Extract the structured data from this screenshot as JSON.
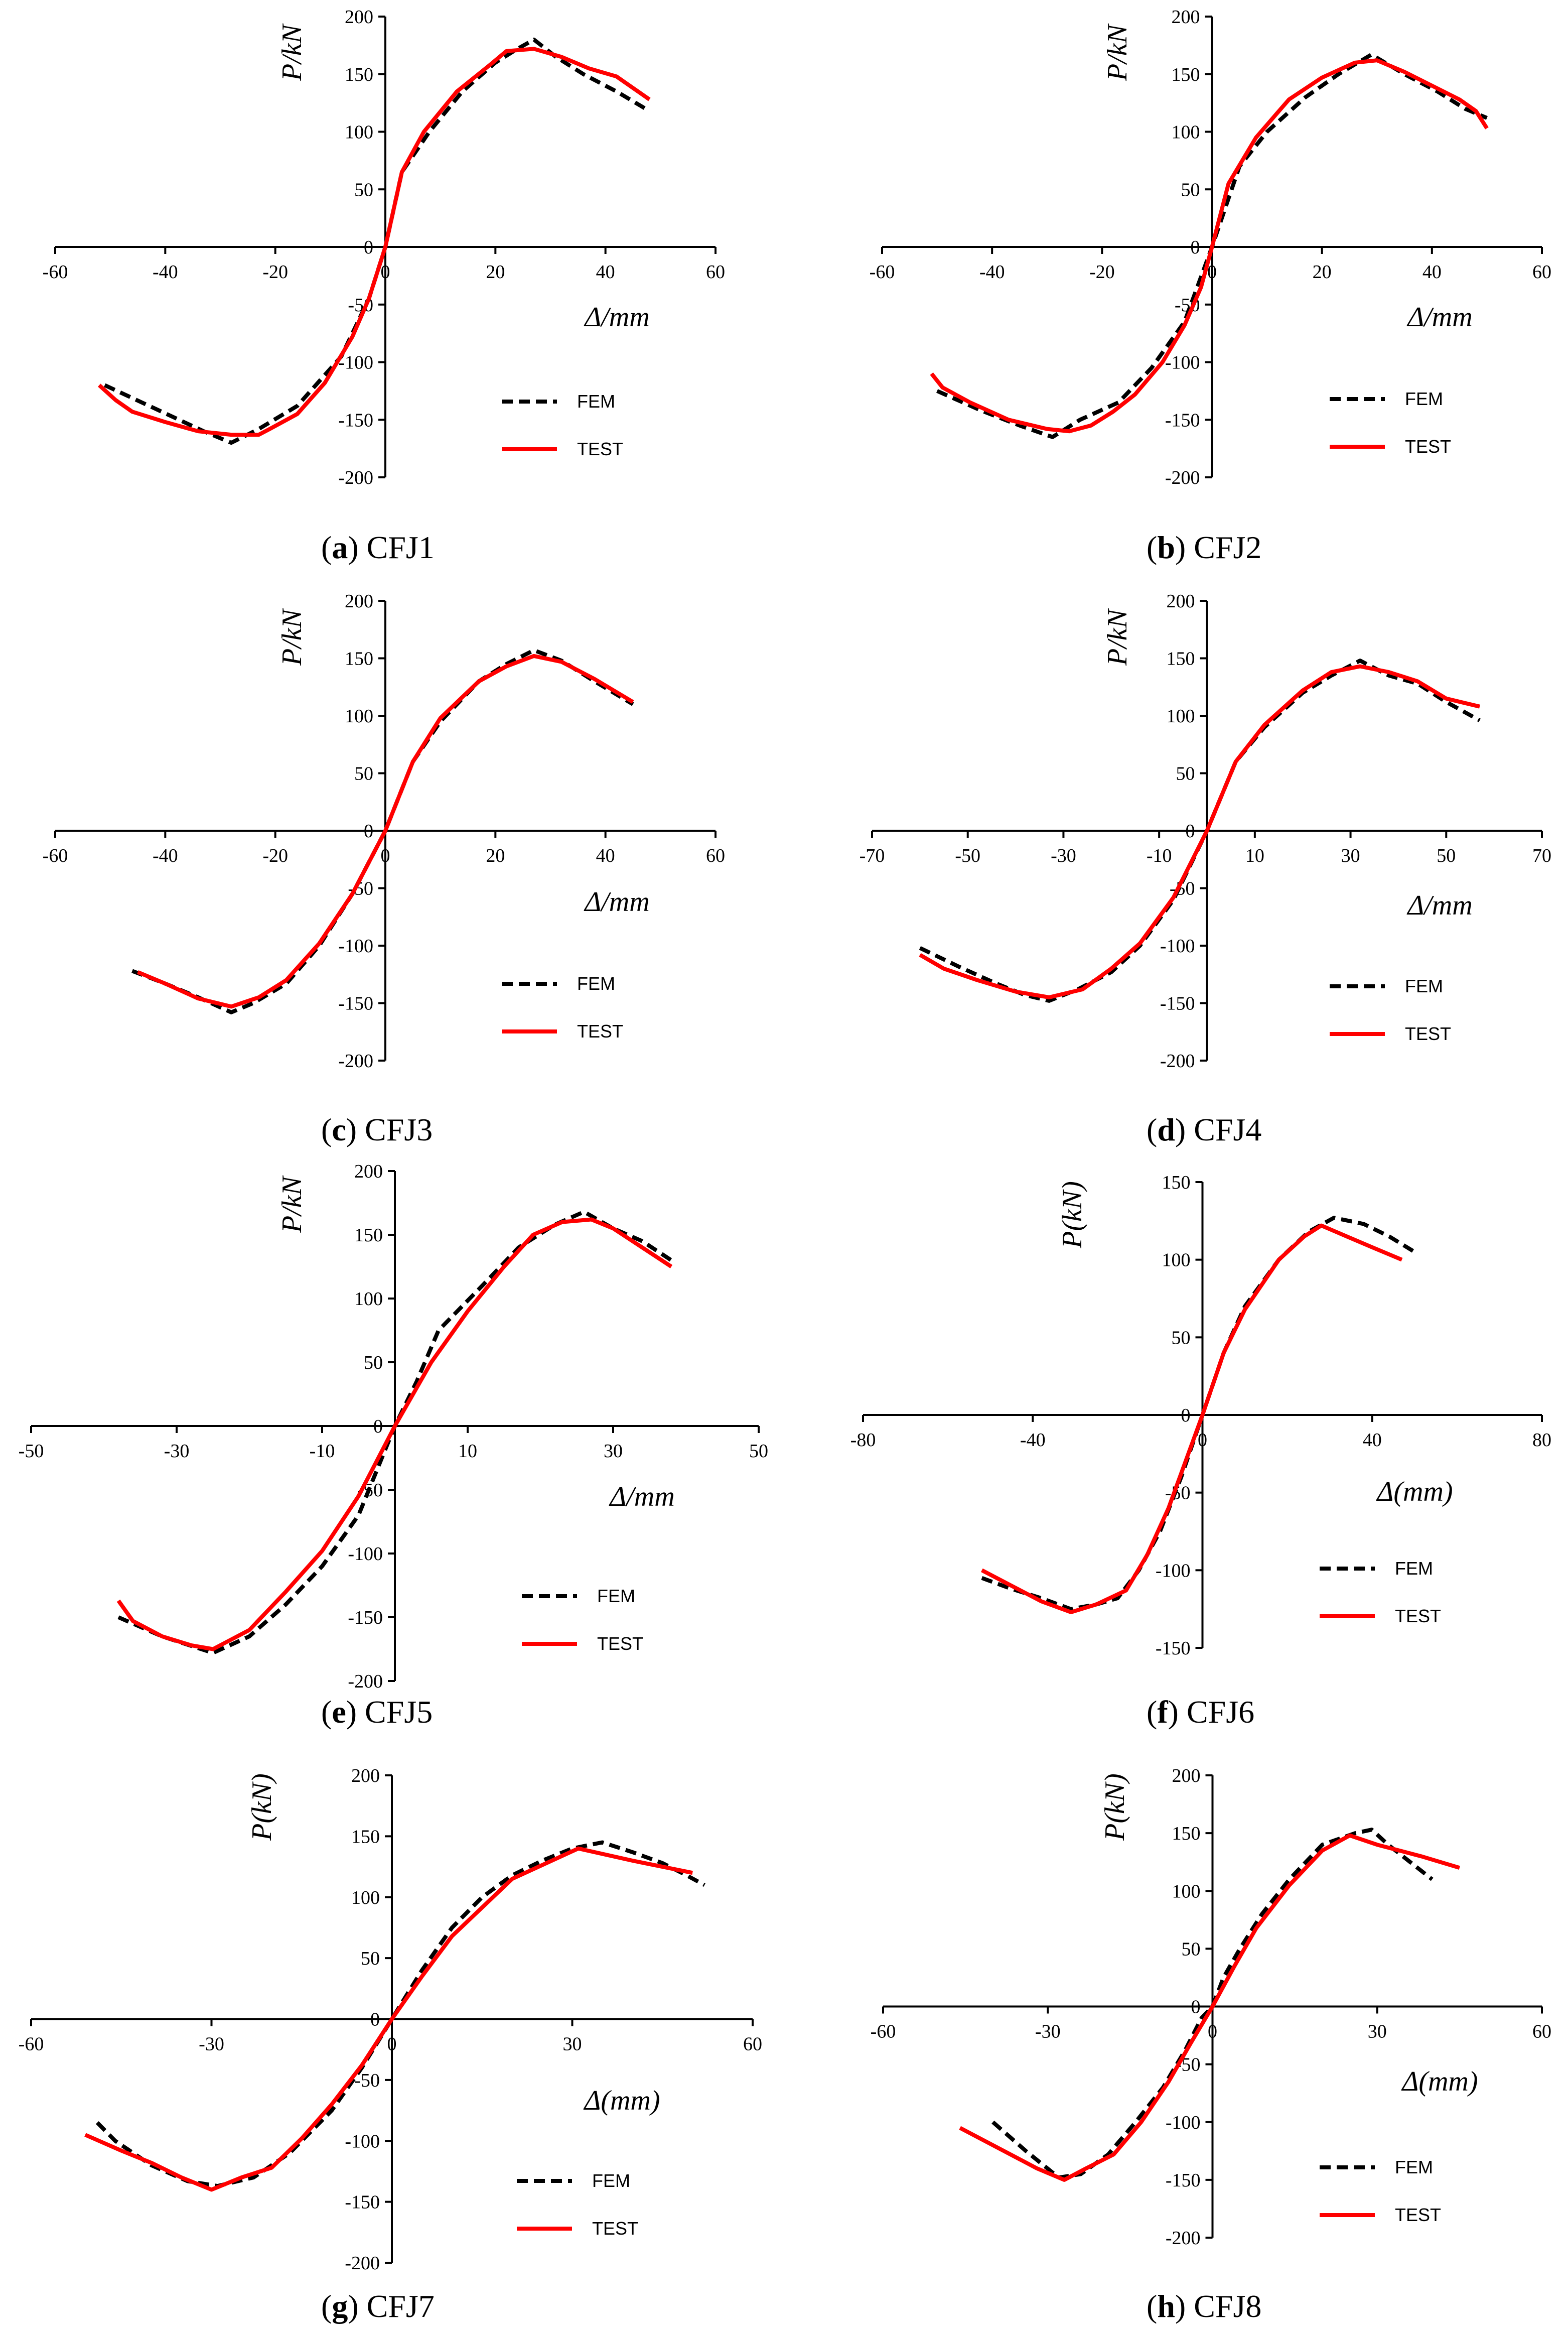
{
  "chart_data": [
    {
      "type": "line",
      "panel": "a",
      "title": "CFJ1",
      "xlabel": "Δ/mm",
      "ylabel": "P/kN",
      "xlim": [
        -60,
        60
      ],
      "ylim": [
        -200,
        200
      ],
      "xticks": [
        -60,
        -40,
        -20,
        0,
        20,
        40,
        60
      ],
      "yticks": [
        -200,
        -150,
        -100,
        -50,
        0,
        50,
        100,
        150,
        200
      ],
      "legend": [
        "FEM",
        "TEST"
      ],
      "series": [
        {
          "name": "FEM",
          "x": [
            -51,
            -42,
            -33,
            -28,
            -23,
            -16,
            -8,
            -3,
            0,
            3,
            8,
            14,
            20,
            24,
            27,
            31,
            36,
            42,
            48
          ],
          "y": [
            -120,
            -140,
            -160,
            -170,
            -158,
            -138,
            -95,
            -45,
            0,
            65,
            100,
            135,
            160,
            172,
            180,
            165,
            150,
            135,
            118
          ]
        },
        {
          "name": "TEST",
          "x": [
            -52,
            -49,
            -46,
            -40,
            -34,
            -28,
            -23,
            -21,
            -16,
            -11,
            -6,
            -3,
            0,
            3,
            7,
            13,
            19,
            22,
            27,
            32,
            37,
            42,
            48
          ],
          "y": [
            -120,
            -133,
            -143,
            -152,
            -160,
            -163,
            -163,
            -158,
            -145,
            -118,
            -78,
            -45,
            0,
            65,
            100,
            135,
            158,
            170,
            172,
            165,
            155,
            148,
            128
          ]
        }
      ]
    },
    {
      "type": "line",
      "panel": "b",
      "title": "CFJ2",
      "xlabel": "Δ/mm",
      "ylabel": "P/kN",
      "xlim": [
        -60,
        60
      ],
      "ylim": [
        -200,
        200
      ],
      "xticks": [
        -60,
        -40,
        -20,
        0,
        20,
        40,
        60
      ],
      "yticks": [
        -200,
        -150,
        -100,
        -50,
        0,
        50,
        100,
        150,
        200
      ],
      "legend": [
        "FEM",
        "TEST"
      ],
      "series": [
        {
          "name": "FEM",
          "x": [
            -50,
            -42,
            -35,
            -29,
            -24,
            -17,
            -11,
            -5,
            0,
            5,
            10,
            17,
            23,
            29,
            35,
            41,
            46,
            50
          ],
          "y": [
            -125,
            -142,
            -155,
            -165,
            -150,
            -135,
            -105,
            -65,
            0,
            70,
            100,
            130,
            150,
            167,
            150,
            135,
            120,
            112
          ]
        },
        {
          "name": "TEST",
          "x": [
            -51,
            -49,
            -44,
            -37,
            -30,
            -26,
            -22,
            -18,
            -14,
            -9,
            -5,
            -2,
            0,
            3,
            8,
            14,
            20,
            26,
            30,
            35,
            40,
            45,
            48,
            50
          ],
          "y": [
            -110,
            -122,
            -135,
            -150,
            -158,
            -160,
            -155,
            -143,
            -128,
            -100,
            -68,
            -35,
            0,
            55,
            95,
            128,
            147,
            160,
            162,
            152,
            140,
            128,
            118,
            103
          ]
        }
      ]
    },
    {
      "type": "line",
      "panel": "c",
      "title": "CFJ3",
      "xlabel": "Δ/mm",
      "ylabel": "P/kN",
      "xlim": [
        -60,
        60
      ],
      "ylim": [
        -200,
        200
      ],
      "xticks": [
        -60,
        -40,
        -20,
        0,
        20,
        40,
        60
      ],
      "yticks": [
        -200,
        -150,
        -100,
        -50,
        0,
        50,
        100,
        150,
        200
      ],
      "legend": [
        "FEM",
        "TEST"
      ],
      "series": [
        {
          "name": "FEM",
          "x": [
            -46,
            -40,
            -34,
            -28,
            -24,
            -18,
            -12,
            -6,
            0,
            5,
            10,
            17,
            22,
            27,
            32,
            38,
            45
          ],
          "y": [
            -122,
            -133,
            -145,
            -158,
            -150,
            -133,
            -100,
            -55,
            0,
            60,
            95,
            130,
            145,
            157,
            148,
            130,
            110
          ]
        },
        {
          "name": "TEST",
          "x": [
            -45,
            -40,
            -34,
            -28,
            -23,
            -18,
            -12,
            -6,
            0,
            5,
            10,
            17,
            22,
            27,
            32,
            38,
            45
          ],
          "y": [
            -123,
            -133,
            -146,
            -153,
            -145,
            -130,
            -98,
            -55,
            0,
            60,
            98,
            130,
            143,
            152,
            147,
            132,
            112
          ]
        }
      ]
    },
    {
      "type": "line",
      "panel": "d",
      "title": "CFJ4",
      "xlabel": "Δ/mm",
      "ylabel": "P/kN",
      "xlim": [
        -70,
        70
      ],
      "ylim": [
        -200,
        200
      ],
      "xticks": [
        -70,
        -50,
        -30,
        -10,
        10,
        30,
        50,
        70
      ],
      "yticks": [
        -200,
        -150,
        -100,
        -50,
        0,
        50,
        100,
        150,
        200
      ],
      "legend": [
        "FEM",
        "TEST"
      ],
      "series": [
        {
          "name": "FEM",
          "x": [
            -60,
            -52,
            -44,
            -38,
            -33,
            -27,
            -20,
            -14,
            -7,
            0,
            6,
            12,
            20,
            26,
            32,
            38,
            44,
            50,
            57
          ],
          "y": [
            -102,
            -118,
            -133,
            -143,
            -148,
            -138,
            -123,
            -100,
            -60,
            0,
            60,
            90,
            120,
            135,
            148,
            135,
            128,
            112,
            96
          ]
        },
        {
          "name": "TEST",
          "x": [
            -60,
            -55,
            -48,
            -40,
            -33,
            -26,
            -20,
            -14,
            -7,
            0,
            6,
            12,
            20,
            26,
            32,
            38,
            44,
            50,
            57
          ],
          "y": [
            -108,
            -120,
            -130,
            -140,
            -145,
            -138,
            -120,
            -98,
            -58,
            0,
            60,
            92,
            122,
            138,
            143,
            138,
            130,
            115,
            108
          ]
        }
      ]
    },
    {
      "type": "line",
      "panel": "e",
      "title": "CFJ5",
      "xlabel": "Δ/mm",
      "ylabel": "P/kN",
      "xlim": [
        -50,
        50
      ],
      "ylim": [
        -200,
        200
      ],
      "xticks": [
        -50,
        -30,
        -10,
        10,
        30,
        50
      ],
      "yticks": [
        -200,
        -150,
        -100,
        -50,
        0,
        50,
        100,
        150,
        200
      ],
      "legend": [
        "FEM",
        "TEST"
      ],
      "series": [
        {
          "name": "FEM",
          "x": [
            -38,
            -32,
            -25,
            -20,
            -15,
            -10,
            -5,
            0,
            3,
            6,
            12,
            17,
            22,
            26,
            30,
            34,
            38
          ],
          "y": [
            -150,
            -165,
            -178,
            -165,
            -140,
            -110,
            -70,
            0,
            35,
            75,
            110,
            140,
            158,
            168,
            155,
            145,
            130
          ]
        },
        {
          "name": "TEST",
          "x": [
            -38,
            -36,
            -32,
            -28,
            -25,
            -20,
            -15,
            -10,
            -5,
            0,
            5,
            10,
            15,
            19,
            23,
            27,
            30,
            34,
            38
          ],
          "y": [
            -137,
            -153,
            -165,
            -172,
            -175,
            -160,
            -130,
            -98,
            -55,
            0,
            50,
            90,
            125,
            150,
            160,
            162,
            155,
            140,
            125
          ]
        }
      ]
    },
    {
      "type": "line",
      "panel": "f",
      "title": "CFJ6",
      "xlabel": "Δ(mm)",
      "ylabel": "P(kN)",
      "xlim": [
        -80,
        80
      ],
      "ylim": [
        -150,
        150
      ],
      "xticks": [
        -80,
        -40,
        0,
        40,
        80
      ],
      "yticks": [
        -150,
        -100,
        -50,
        0,
        50,
        100,
        150
      ],
      "legend": [
        "FEM",
        "TEST"
      ],
      "series": [
        {
          "name": "FEM",
          "x": [
            -52,
            -45,
            -38,
            -31,
            -25,
            -20,
            -15,
            -10,
            -5,
            0,
            5,
            10,
            18,
            25,
            31,
            38,
            44,
            50
          ],
          "y": [
            -105,
            -112,
            -118,
            -125,
            -122,
            -118,
            -100,
            -75,
            -40,
            0,
            40,
            70,
            100,
            118,
            127,
            123,
            115,
            105
          ]
        },
        {
          "name": "TEST",
          "x": [
            -52,
            -45,
            -38,
            -31,
            -25,
            -18,
            -13,
            -8,
            -4,
            0,
            5,
            10,
            18,
            24,
            28,
            34,
            40,
            47
          ],
          "y": [
            -100,
            -110,
            -120,
            -127,
            -122,
            -113,
            -90,
            -60,
            -30,
            0,
            40,
            68,
            100,
            115,
            122,
            115,
            108,
            100
          ]
        }
      ]
    },
    {
      "type": "line",
      "panel": "g",
      "title": "CFJ7",
      "xlabel": "Δ(mm)",
      "ylabel": "P(kN)",
      "xlim": [
        -60,
        60
      ],
      "ylim": [
        -200,
        200
      ],
      "xticks": [
        -60,
        -30,
        0,
        30,
        60
      ],
      "yticks": [
        -200,
        -150,
        -100,
        -50,
        0,
        50,
        100,
        150,
        200
      ],
      "legend": [
        "FEM",
        "TEST"
      ],
      "series": [
        {
          "name": "FEM",
          "x": [
            -49,
            -46,
            -40,
            -34,
            -29,
            -23,
            -17,
            -10,
            -5,
            0,
            5,
            10,
            15,
            20,
            25,
            30,
            35,
            40,
            45,
            49,
            52
          ],
          "y": [
            -85,
            -100,
            -120,
            -133,
            -137,
            -130,
            -110,
            -75,
            -40,
            0,
            40,
            75,
            100,
            118,
            130,
            140,
            145,
            137,
            128,
            118,
            110
          ]
        },
        {
          "name": "TEST",
          "x": [
            -51,
            -45,
            -40,
            -35,
            -30,
            -25,
            -20,
            -15,
            -10,
            -5,
            0,
            5,
            10,
            20,
            31,
            40,
            50
          ],
          "y": [
            -95,
            -108,
            -118,
            -130,
            -140,
            -130,
            -122,
            -98,
            -70,
            -38,
            0,
            35,
            68,
            115,
            140,
            130,
            120
          ]
        }
      ]
    },
    {
      "type": "line",
      "panel": "h",
      "title": "CFJ8",
      "xlabel": "Δ(mm)",
      "ylabel": "P(kN)",
      "xlim": [
        -60,
        60
      ],
      "ylim": [
        -200,
        200
      ],
      "xticks": [
        -60,
        -30,
        0,
        30,
        60
      ],
      "yticks": [
        -200,
        -150,
        -100,
        -50,
        0,
        50,
        100,
        150,
        200
      ],
      "legend": [
        "FEM",
        "TEST"
      ],
      "series": [
        {
          "name": "FEM",
          "x": [
            -40,
            -34,
            -28,
            -24,
            -19,
            -14,
            -9,
            -5,
            -2,
            0,
            2,
            5,
            9,
            14,
            20,
            26,
            29,
            32,
            36,
            40
          ],
          "y": [
            -100,
            -125,
            -148,
            -145,
            -128,
            -100,
            -70,
            -38,
            -10,
            0,
            25,
            50,
            80,
            110,
            140,
            150,
            153,
            140,
            125,
            110
          ]
        },
        {
          "name": "TEST",
          "x": [
            -46,
            -38,
            -32,
            -27,
            -23,
            -18,
            -13,
            -8,
            -4,
            0,
            4,
            8,
            14,
            20,
            25,
            30,
            38,
            45
          ],
          "y": [
            -105,
            -125,
            -140,
            -150,
            -140,
            -128,
            -100,
            -65,
            -32,
            0,
            35,
            68,
            105,
            135,
            148,
            140,
            130,
            120
          ]
        }
      ]
    }
  ]
}
